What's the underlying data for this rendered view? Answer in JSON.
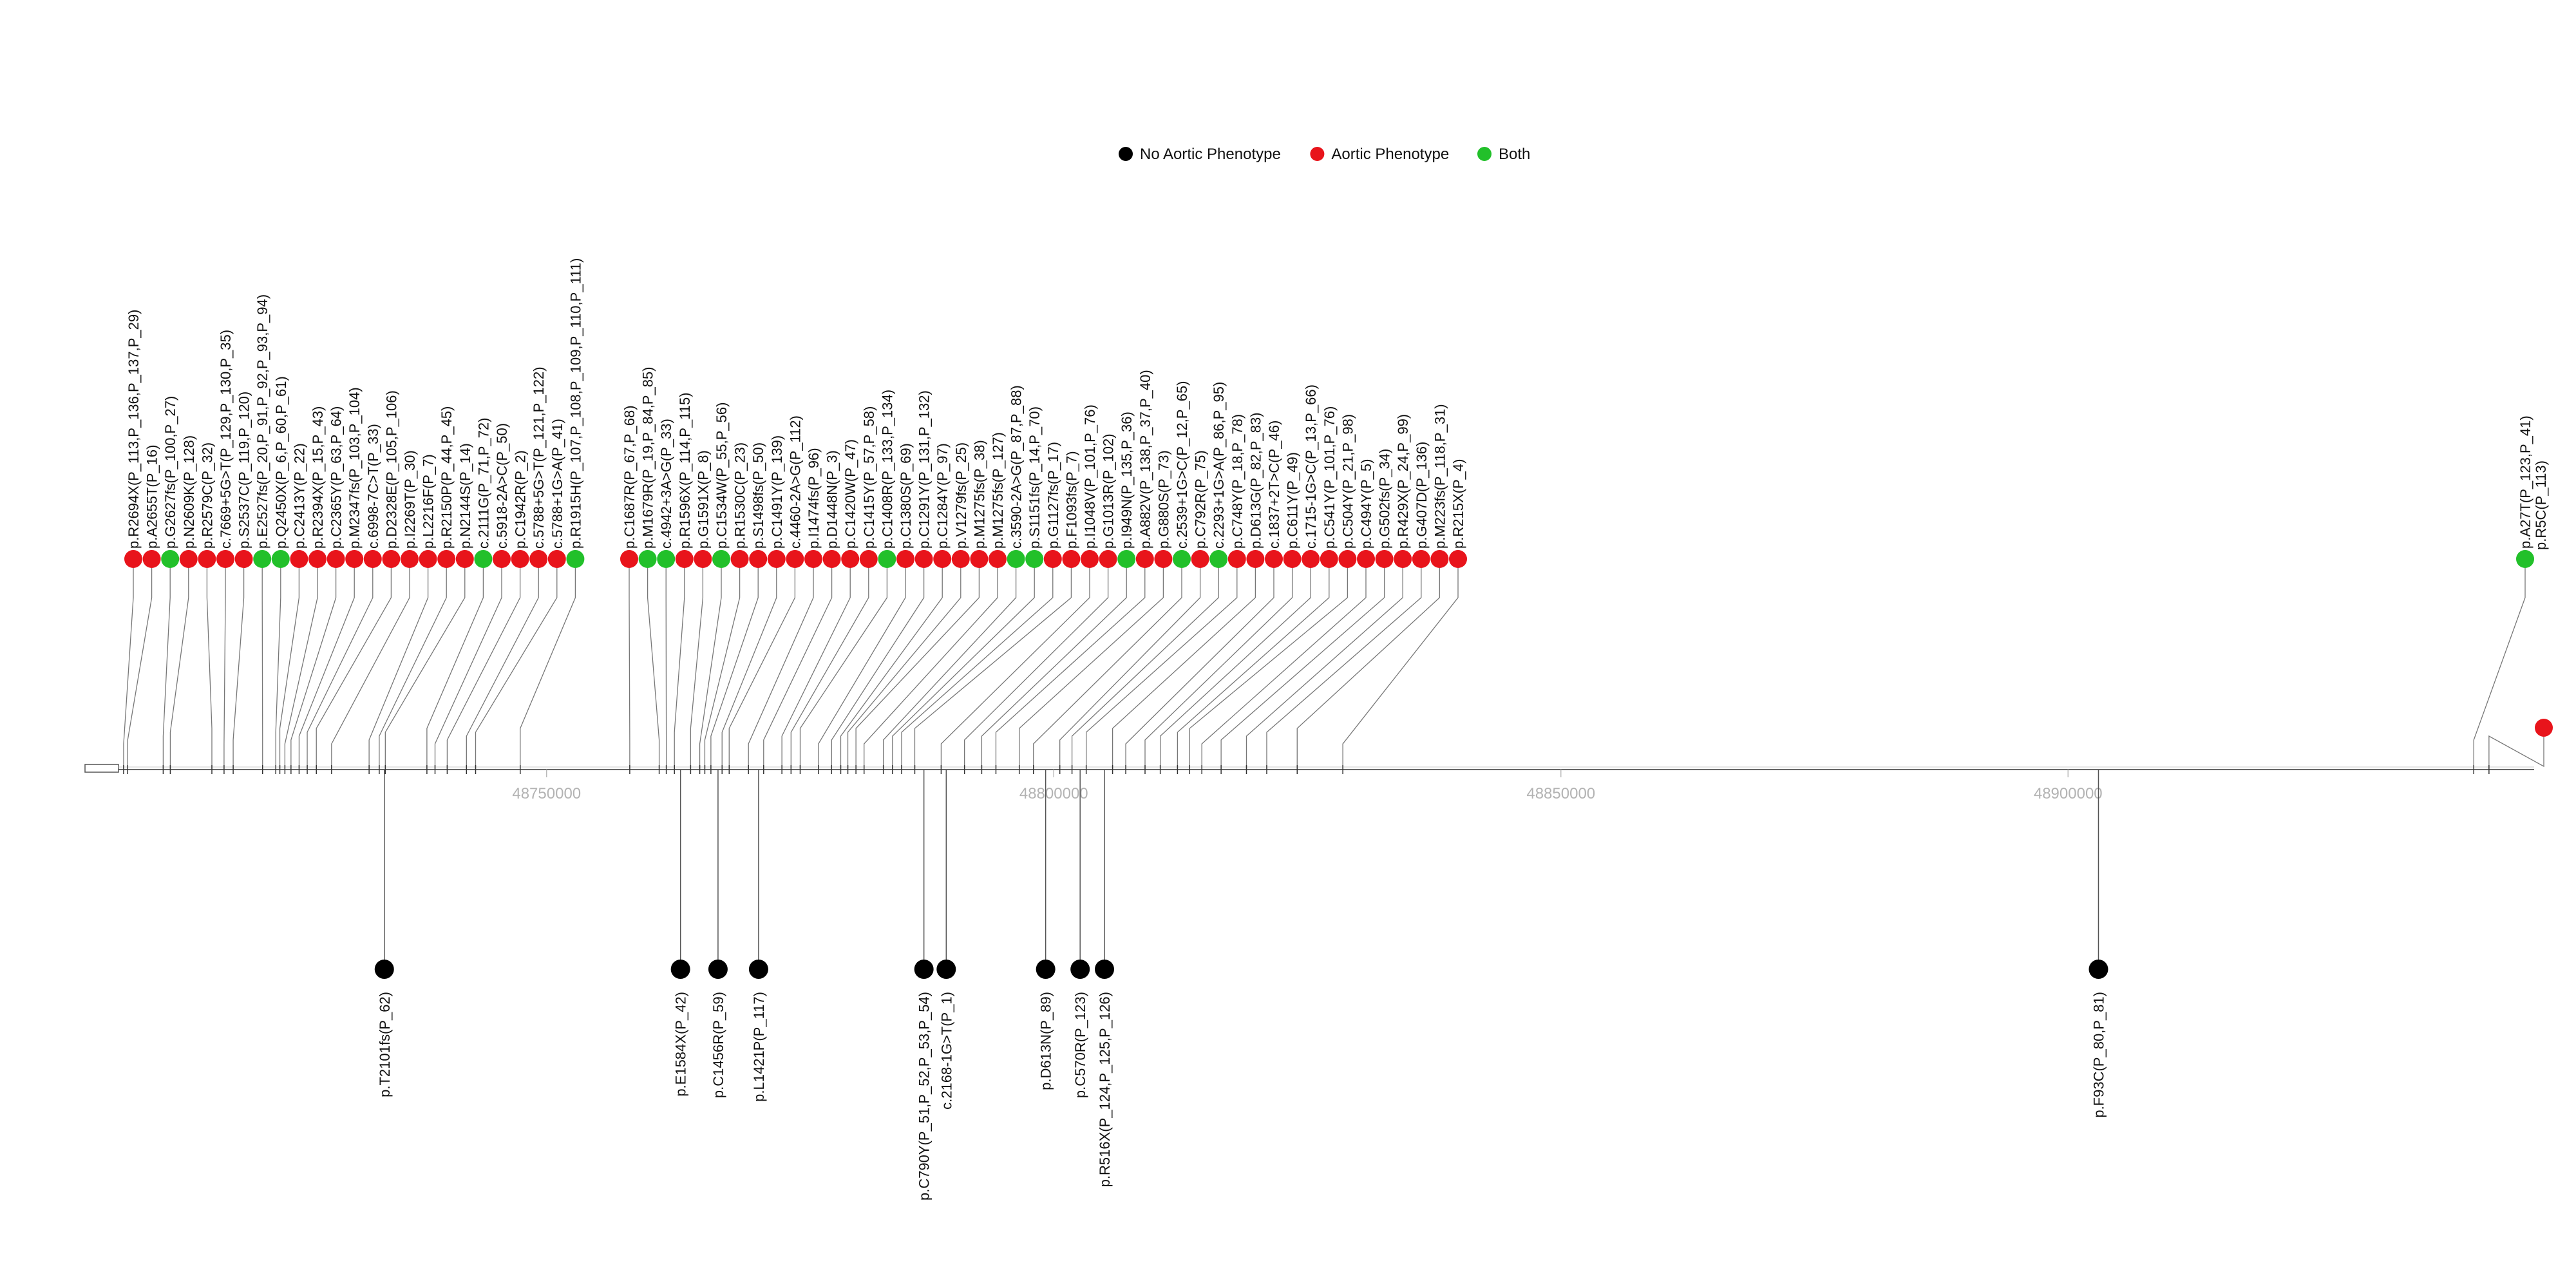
{
  "chart_data": {
    "type": "lollipop",
    "xlim": [
      48705000,
      48945000
    ],
    "axis_ticks": [
      48750000,
      48800000,
      48850000,
      48900000
    ],
    "colors": {
      "no": "#000000",
      "aortic": "#e8141b",
      "both": "#22c02a"
    },
    "legend": {
      "placement": "top-center",
      "entries": [
        {
          "key": "no",
          "label": "No Aortic Phenotype"
        },
        {
          "key": "aortic",
          "label": "Aortic Phenotype"
        },
        {
          "key": "both",
          "label": "Both"
        }
      ]
    },
    "lollipop_colors_note": "",
    "above": [
      {
        "label": "p.R2694X(P_113,P_136,P_137,P_29)",
        "pos": 48708300,
        "type": "aortic"
      },
      {
        "label": "p.A2655T(P_16)",
        "pos": 48708700,
        "type": "aortic"
      },
      {
        "label": "p.G2627fs(P_100,P_27)",
        "pos": 48712200,
        "type": "both"
      },
      {
        "label": "p.N2609K(P_128)",
        "pos": 48712900,
        "type": "aortic"
      },
      {
        "label": "p.R2579C(P_32)",
        "pos": 48717000,
        "type": "aortic"
      },
      {
        "label": "c.7669+5G>T(P_129,P_130,P_35)",
        "pos": 48718200,
        "type": "aortic"
      },
      {
        "label": "p.S2537C(P_119,P_120)",
        "pos": 48719100,
        "type": "aortic"
      },
      {
        "label": "p.E2527fs(P_20,P_91,P_92,P_93,P_94)",
        "pos": 48722000,
        "type": "both"
      },
      {
        "label": "p.Q2450X(P_6,P_60,P_61)",
        "pos": 48723300,
        "type": "both"
      },
      {
        "label": "p.C2413Y(P_22)",
        "pos": 48723700,
        "type": "aortic"
      },
      {
        "label": "p.R2394X(P_15,P_43)",
        "pos": 48724200,
        "type": "aortic"
      },
      {
        "label": "p.C2365Y(P_63,P_64)",
        "pos": 48724800,
        "type": "aortic"
      },
      {
        "label": "p.M2347fs(P_103,P_104)",
        "pos": 48725600,
        "type": "aortic"
      },
      {
        "label": "c.6998-7C>T(P_33)",
        "pos": 48726400,
        "type": "aortic"
      },
      {
        "label": "p.D2328E(P_105,P_106)",
        "pos": 48727300,
        "type": "aortic"
      },
      {
        "label": "p.I2269T(P_30)",
        "pos": 48728800,
        "type": "aortic"
      },
      {
        "label": "p.L2216F(P_7)",
        "pos": 48732500,
        "type": "aortic"
      },
      {
        "label": "p.R2150P(P_44,P_45)",
        "pos": 48733500,
        "type": "aortic"
      },
      {
        "label": "p.N2144S(P_14)",
        "pos": 48734100,
        "type": "aortic"
      },
      {
        "label": "c.2111G(P_71,P_72)",
        "pos": 48738200,
        "type": "both"
      },
      {
        "label": "c.5918-2A>C(P_50)",
        "pos": 48739000,
        "type": "aortic"
      },
      {
        "label": "p.C1942R(P_2)",
        "pos": 48740200,
        "type": "aortic"
      },
      {
        "label": "c.5788+5G>T(P_121,P_122)",
        "pos": 48742100,
        "type": "aortic"
      },
      {
        "label": "c.5788+1G>A(P_41)",
        "pos": 48743000,
        "type": "aortic"
      },
      {
        "label": "p.R1915H(P_107,P_108,P_109,P_110,P_111)",
        "pos": 48747400,
        "type": "both"
      },
      {
        "label": "p.C1687R(P_67,P_68)",
        "pos": 48758200,
        "type": "aortic"
      },
      {
        "label": "p.M1679R(P_19,P_84,P_85)",
        "pos": 48761100,
        "type": "both"
      },
      {
        "label": "c.4942+3A>G(P_33)",
        "pos": 48761800,
        "type": "both"
      },
      {
        "label": "p.R1596X(P_114,P_115)",
        "pos": 48762600,
        "type": "aortic"
      },
      {
        "label": "p.G1591X(P_8)",
        "pos": 48764200,
        "type": "aortic"
      },
      {
        "label": "p.C1534W(P_55,P_56)",
        "pos": 48765100,
        "type": "both"
      },
      {
        "label": "p.R1530C(P_23)",
        "pos": 48765600,
        "type": "aortic"
      },
      {
        "label": "p.S1498fs(P_50)",
        "pos": 48766200,
        "type": "aortic"
      },
      {
        "label": "p.C1491Y(P_139)",
        "pos": 48767300,
        "type": "aortic"
      },
      {
        "label": "c.4460-2A>G(P_112)",
        "pos": 48768000,
        "type": "aortic"
      },
      {
        "label": "p.I1474fs(P_96)",
        "pos": 48769900,
        "type": "aortic"
      },
      {
        "label": "p.D1448N(P_3)",
        "pos": 48771400,
        "type": "aortic"
      },
      {
        "label": "p.C1420W(P_47)",
        "pos": 48773200,
        "type": "aortic"
      },
      {
        "label": "p.C1415Y(P_57,P_58)",
        "pos": 48774100,
        "type": "aortic"
      },
      {
        "label": "p.C1408R(P_133,P_134)",
        "pos": 48775000,
        "type": "both"
      },
      {
        "label": "p.C1380S(P_69)",
        "pos": 48776800,
        "type": "aortic"
      },
      {
        "label": "p.C1291Y(P_131,P_132)",
        "pos": 48778100,
        "type": "aortic"
      },
      {
        "label": "p.C1284Y(P_97)",
        "pos": 48779000,
        "type": "aortic"
      },
      {
        "label": "p.V1279fs(P_25)",
        "pos": 48779700,
        "type": "aortic"
      },
      {
        "label": "p.M1275fs(P_38)",
        "pos": 48780500,
        "type": "aortic"
      },
      {
        "label": "p.M1275fs(P_127)",
        "pos": 48781300,
        "type": "aortic"
      },
      {
        "label": "c.3590-2A>G(P_87,P_88)",
        "pos": 48783200,
        "type": "both"
      },
      {
        "label": "p.S1151fs(P_14,P_70)",
        "pos": 48784100,
        "type": "both"
      },
      {
        "label": "p.G1127fs(P_17)",
        "pos": 48785000,
        "type": "aortic"
      },
      {
        "label": "p.F1093fs(P_7)",
        "pos": 48786300,
        "type": "aortic"
      },
      {
        "label": "p.I1048V(P_101,P_76)",
        "pos": 48788900,
        "type": "aortic"
      },
      {
        "label": "p.G1013R(P_102)",
        "pos": 48791200,
        "type": "aortic"
      },
      {
        "label": "p.I949N(P_135,P_36)",
        "pos": 48792900,
        "type": "both"
      },
      {
        "label": "p.A882V(P_138,P_37,P_40)",
        "pos": 48794300,
        "type": "aortic"
      },
      {
        "label": "p.G880S(P_73)",
        "pos": 48796600,
        "type": "aortic"
      },
      {
        "label": "c.2539+1G>C(P_12,P_65)",
        "pos": 48798000,
        "type": "both"
      },
      {
        "label": "p.C792R(P_75)",
        "pos": 48800600,
        "type": "aortic"
      },
      {
        "label": "c.2293+1G>A(P_86,P_95)",
        "pos": 48801800,
        "type": "both"
      },
      {
        "label": "p.C748Y(P_18,P_78)",
        "pos": 48803200,
        "type": "aortic"
      },
      {
        "label": "p.D613G(P_82,P_83)",
        "pos": 48805800,
        "type": "aortic"
      },
      {
        "label": "c.1837+2T>C(P_46)",
        "pos": 48807100,
        "type": "aortic"
      },
      {
        "label": "p.C611Y(P_49)",
        "pos": 48809000,
        "type": "aortic"
      },
      {
        "label": "c.1715-1G>C(P_13,P_66)",
        "pos": 48810500,
        "type": "aortic"
      },
      {
        "label": "p.C541Y(P_101,P_76)",
        "pos": 48812200,
        "type": "aortic"
      },
      {
        "label": "p.C504Y(P_21,P_98)",
        "pos": 48813400,
        "type": "aortic"
      },
      {
        "label": "p.C494Y(P_5)",
        "pos": 48814600,
        "type": "aortic"
      },
      {
        "label": "p.G502fs(P_34)",
        "pos": 48816500,
        "type": "aortic"
      },
      {
        "label": "p.R429X(P_24,P_99)",
        "pos": 48819000,
        "type": "aortic"
      },
      {
        "label": "p.G407D(P_136)",
        "pos": 48821000,
        "type": "aortic"
      },
      {
        "label": "p.M223fs(P_118,P_31)",
        "pos": 48824000,
        "type": "aortic"
      },
      {
        "label": "p.R215X(P_4)",
        "pos": 48828500,
        "type": "aortic"
      },
      {
        "label": "p.A27T(P_123,P_41)",
        "pos": 48940000,
        "type": "both"
      },
      {
        "label": "p.R5C(P_113)",
        "pos": 48941500,
        "type": "aortic"
      }
    ],
    "below": [
      {
        "label": "p.T2101fs(P_62)",
        "pos": 48734000,
        "type": "no"
      },
      {
        "label": "p.E1584X(P_42)",
        "pos": 48763200,
        "type": "no"
      },
      {
        "label": "p.C1456R(P_59)",
        "pos": 48766900,
        "type": "no"
      },
      {
        "label": "p.L1421P(P_117)",
        "pos": 48770900,
        "type": "no"
      },
      {
        "label": "p.C790Y(P_51,P_52,P_53,P_54)",
        "pos": 48787200,
        "type": "no"
      },
      {
        "label": "c.2168-1G>T(P_1)",
        "pos": 48789400,
        "type": "no"
      },
      {
        "label": "p.D613N(P_89)",
        "pos": 48799200,
        "type": "no"
      },
      {
        "label": "p.C570R(P_123)",
        "pos": 48802600,
        "type": "no"
      },
      {
        "label": "p.R516X(P_124,P_125,P_126)",
        "pos": 48805000,
        "type": "no"
      },
      {
        "label": "p.F93C(P_80,P_81)",
        "pos": 48903000,
        "type": "no"
      }
    ]
  }
}
